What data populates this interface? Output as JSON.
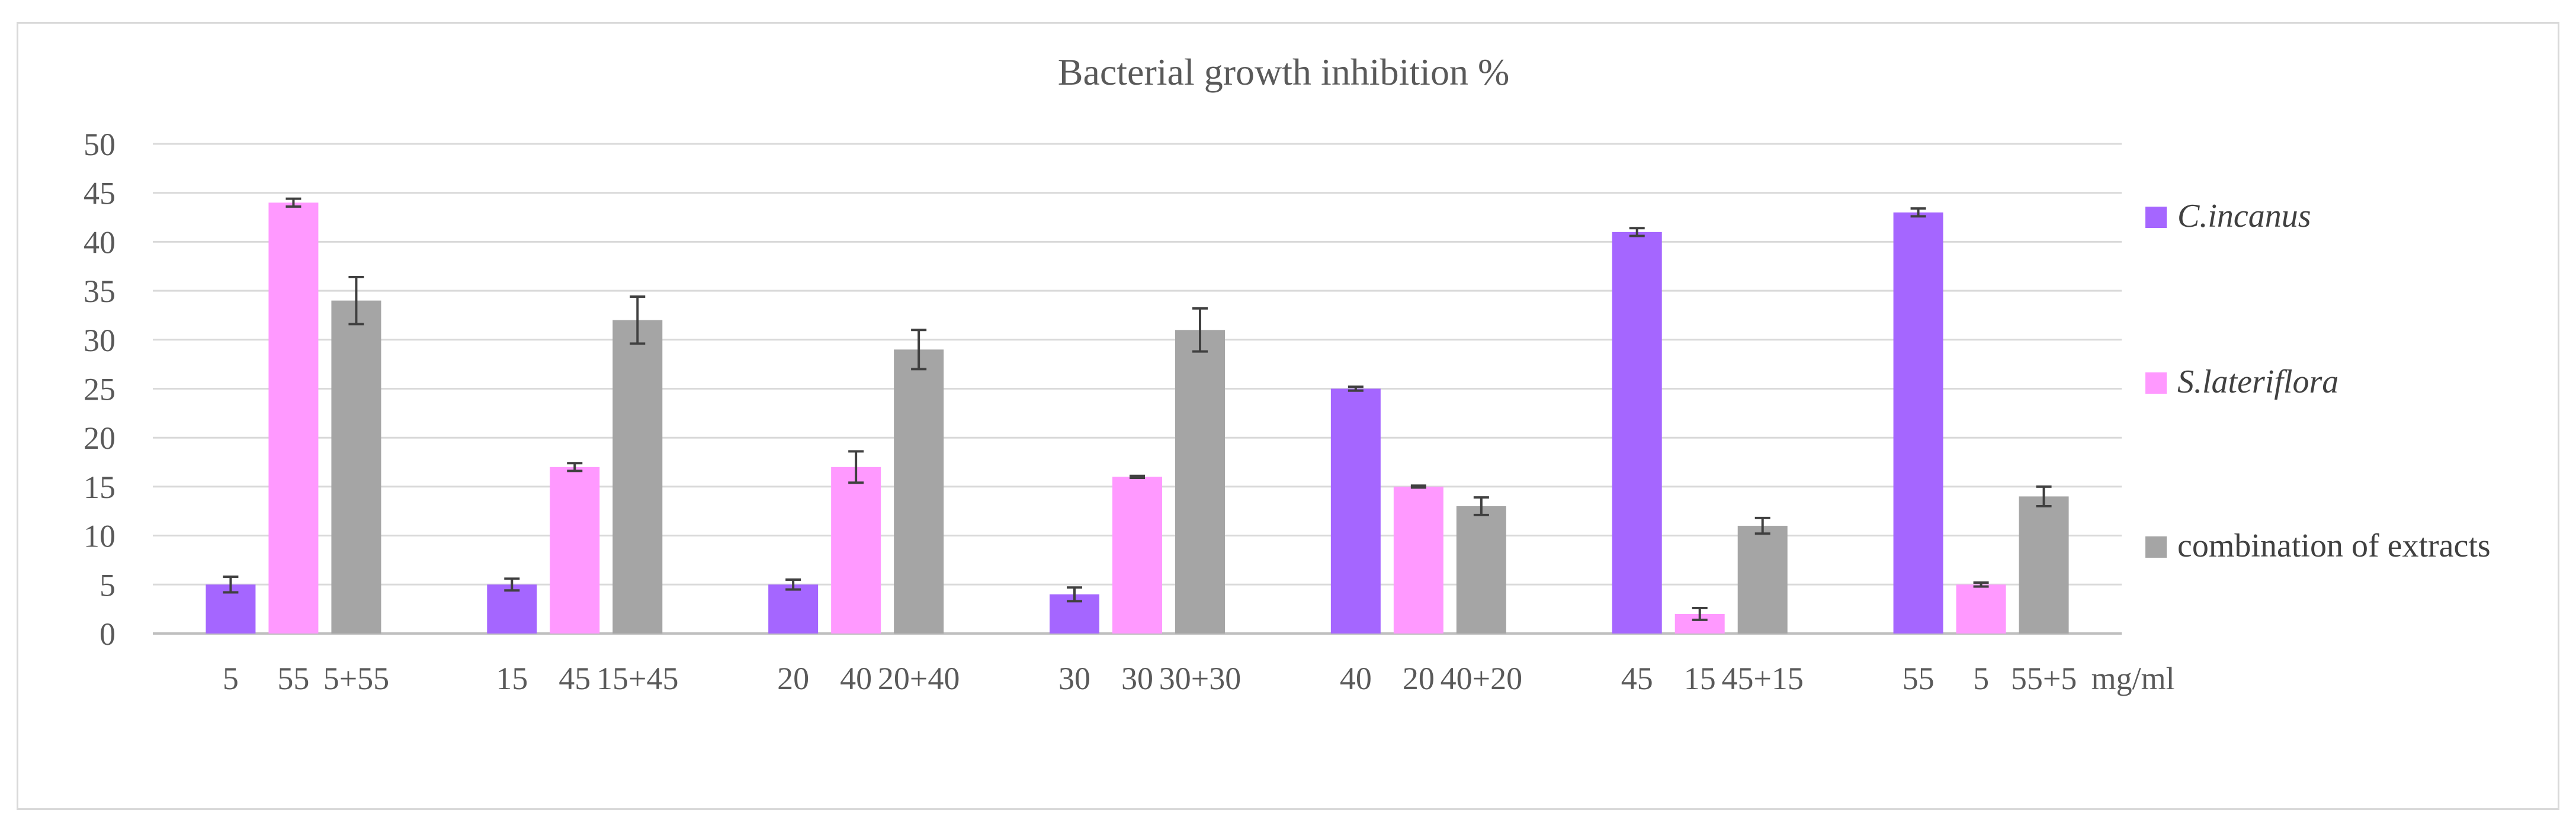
{
  "chart_data": {
    "type": "bar",
    "title": "Bacterial growth inhibition %",
    "ylim": [
      0,
      50
    ],
    "yticks": [
      0,
      5,
      10,
      15,
      20,
      25,
      30,
      35,
      40,
      45,
      50
    ],
    "grid": true,
    "legend_position": "right",
    "unit_label": "mg/ml",
    "groups": [
      {
        "labels": [
          "5",
          "55",
          "5+55"
        ]
      },
      {
        "labels": [
          "15",
          "45",
          "15+45"
        ]
      },
      {
        "labels": [
          "20",
          "40",
          "20+40"
        ]
      },
      {
        "labels": [
          "30",
          "30",
          "30+30"
        ]
      },
      {
        "labels": [
          "40",
          "20",
          "40+20"
        ]
      },
      {
        "labels": [
          "45",
          "15",
          "45+15"
        ]
      },
      {
        "labels": [
          "55",
          "5",
          "55+5"
        ]
      }
    ],
    "series": [
      {
        "name": "C.incanus",
        "italic": true,
        "color": "#a566ff",
        "values": [
          5,
          5,
          5,
          4,
          25,
          41,
          43
        ],
        "errors": [
          0.8,
          0.6,
          0.5,
          0.7,
          0.2,
          0.4,
          0.4
        ]
      },
      {
        "name": "S.lateriflora",
        "italic": true,
        "color": "#ff99ff",
        "values": [
          44,
          17,
          17,
          16,
          15,
          2,
          5
        ],
        "errors": [
          0.4,
          0.4,
          1.6,
          0.1,
          0.1,
          0.6,
          0.2
        ]
      },
      {
        "name": "combination of extracts",
        "italic": false,
        "color": "#a5a5a5",
        "values": [
          34,
          32,
          29,
          31,
          13,
          11,
          14
        ],
        "errors": [
          2.4,
          2.4,
          2.0,
          2.2,
          0.9,
          0.8,
          1.0
        ]
      }
    ]
  }
}
